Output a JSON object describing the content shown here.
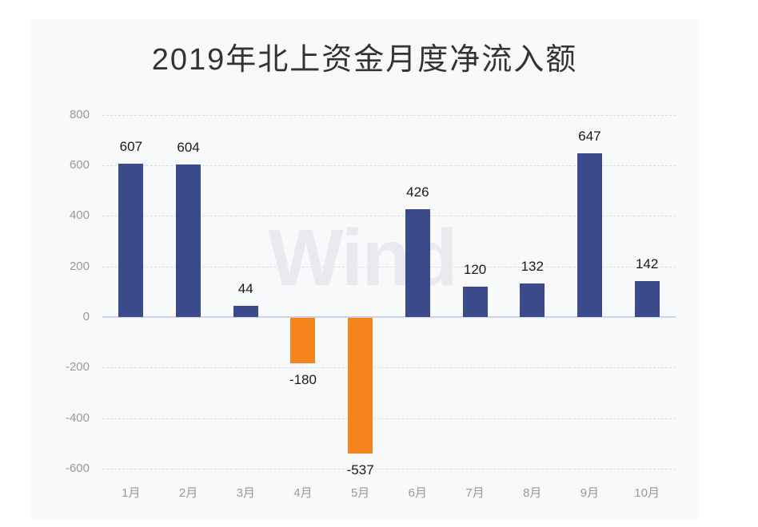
{
  "watermark": {
    "text": "Wind",
    "color": "#e9eaed"
  },
  "chart_data": {
    "type": "bar",
    "title": "2019年北上资金月度净流入额",
    "categories": [
      "1月",
      "2月",
      "3月",
      "4月",
      "5月",
      "6月",
      "7月",
      "8月",
      "9月",
      "10月"
    ],
    "values": [
      607,
      604,
      44,
      -180,
      -537,
      426,
      120,
      132,
      647,
      142
    ],
    "xlabel": "",
    "ylabel": "",
    "ylim": [
      -600,
      800
    ],
    "yticks": [
      800,
      600,
      400,
      200,
      0,
      -200,
      -400,
      -600
    ],
    "grid": "horizontal-dashed",
    "legend": "none",
    "colors": {
      "positive_bar": "#3a4a8a",
      "negative_bar": "#f5831e",
      "zero_axis_line": "#ccd3e8",
      "gridline": "#dcdee3",
      "tick_label": "#999999",
      "value_label": "#1a1a1a",
      "title": "#333333",
      "panel_background": "#f8f9fb"
    }
  }
}
